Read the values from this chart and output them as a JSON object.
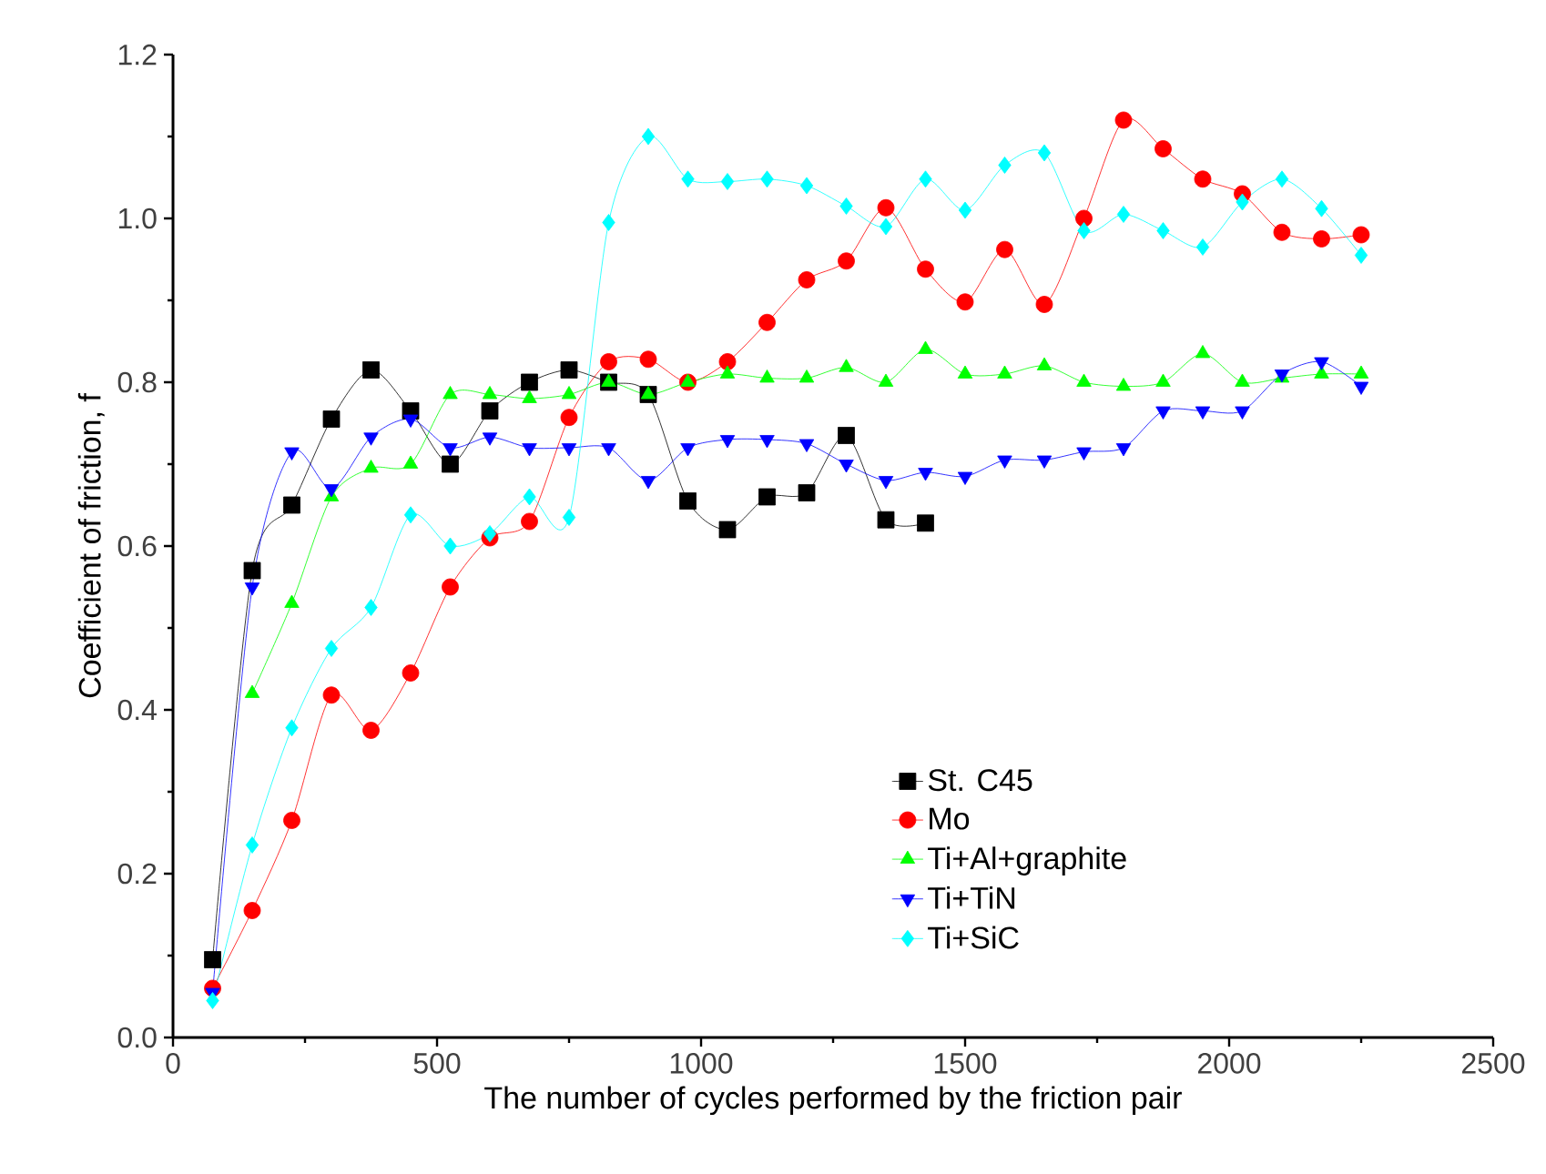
{
  "chart_data": {
    "type": "line",
    "xlabel": "The number of cycles performed by the friction pair",
    "ylabel": "Coefficient of friction, f",
    "xlim": [
      0,
      2500
    ],
    "xticks": [
      0,
      500,
      1000,
      1500,
      2000,
      2500
    ],
    "ylim": [
      0,
      1.2
    ],
    "yticks": [
      {
        "value": 0,
        "label": "0.0"
      },
      {
        "value": 0.2,
        "label": "0.2"
      },
      {
        "value": 0.4,
        "label": "0.4"
      },
      {
        "value": 0.6,
        "label": "0.6"
      },
      {
        "value": 0.8,
        "label": "0.8"
      },
      {
        "value": 1.0,
        "label": "1.0"
      },
      {
        "value": 1.2,
        "label": "1.2"
      }
    ],
    "grid": false,
    "legend": "right",
    "line_style": "solid",
    "series": [
      {
        "name": "St. C45",
        "color": "#000000",
        "marker": "square",
        "x": [
          75,
          150,
          225,
          300,
          375,
          450,
          525,
          600,
          675,
          750,
          825,
          900,
          975,
          1050,
          1125,
          1200,
          1275,
          1350,
          1425
        ],
        "values": [
          0.095,
          0.57,
          0.65,
          0.755,
          0.815,
          0.765,
          0.7,
          0.765,
          0.8,
          0.815,
          0.8,
          0.785,
          0.655,
          0.62,
          0.66,
          0.665,
          0.735,
          0.632,
          0.628
        ]
      },
      {
        "name": "Mo",
        "color": "#ff0000",
        "marker": "circle",
        "x": [
          75,
          150,
          225,
          300,
          375,
          450,
          525,
          600,
          675,
          750,
          825,
          900,
          975,
          1050,
          1125,
          1200,
          1275,
          1350,
          1425,
          1500,
          1575,
          1650,
          1725,
          1800,
          1875,
          1950,
          2025,
          2100,
          2175,
          2250
        ],
        "values": [
          0.06,
          0.155,
          0.265,
          0.418,
          0.375,
          0.445,
          0.55,
          0.61,
          0.63,
          0.757,
          0.825,
          0.828,
          0.8,
          0.825,
          0.873,
          0.925,
          0.948,
          1.013,
          0.938,
          0.898,
          0.962,
          0.895,
          1.0,
          1.12,
          1.085,
          1.048,
          1.03,
          0.983,
          0.975,
          0.98
        ]
      },
      {
        "name": "Ti+Al+graphite",
        "color": "#00ff00",
        "marker": "triangle",
        "x": [
          150,
          225,
          300,
          375,
          450,
          525,
          600,
          675,
          750,
          825,
          900,
          975,
          1050,
          1125,
          1200,
          1275,
          1350,
          1425,
          1500,
          1575,
          1650,
          1725,
          1800,
          1875,
          1950,
          2025,
          2100,
          2175,
          2250
        ],
        "values": [
          0.42,
          0.53,
          0.66,
          0.695,
          0.7,
          0.785,
          0.785,
          0.78,
          0.785,
          0.8,
          0.785,
          0.8,
          0.81,
          0.805,
          0.805,
          0.818,
          0.8,
          0.84,
          0.81,
          0.81,
          0.82,
          0.8,
          0.795,
          0.8,
          0.835,
          0.8,
          0.805,
          0.81,
          0.81
        ]
      },
      {
        "name": "Ti+TiN",
        "color": "#0000ff",
        "marker": "triangle down",
        "x": [
          75,
          150,
          225,
          300,
          375,
          450,
          525,
          600,
          675,
          750,
          825,
          900,
          975,
          1050,
          1125,
          1200,
          1275,
          1350,
          1425,
          1500,
          1575,
          1650,
          1725,
          1800,
          1875,
          1950,
          2025,
          2100,
          2175,
          2250
        ],
        "values": [
          0.055,
          0.55,
          0.715,
          0.67,
          0.733,
          0.755,
          0.72,
          0.733,
          0.72,
          0.72,
          0.72,
          0.68,
          0.72,
          0.73,
          0.73,
          0.725,
          0.7,
          0.68,
          0.69,
          0.685,
          0.705,
          0.705,
          0.715,
          0.72,
          0.765,
          0.765,
          0.765,
          0.81,
          0.825,
          0.795
        ]
      },
      {
        "name": "Ti+SiC",
        "color": "#00ffff",
        "marker": "diamond",
        "x": [
          75,
          150,
          225,
          300,
          375,
          450,
          525,
          600,
          675,
          750,
          825,
          900,
          975,
          1050,
          1125,
          1200,
          1275,
          1350,
          1425,
          1500,
          1575,
          1650,
          1725,
          1800,
          1875,
          1950,
          2025,
          2100,
          2175,
          2250
        ],
        "values": [
          0.045,
          0.235,
          0.378,
          0.475,
          0.525,
          0.638,
          0.6,
          0.615,
          0.66,
          0.635,
          0.995,
          1.1,
          1.048,
          1.045,
          1.048,
          1.04,
          1.015,
          0.99,
          1.048,
          1.01,
          1.065,
          1.08,
          0.985,
          1.005,
          0.985,
          0.965,
          1.02,
          1.048,
          1.012,
          0.955
        ]
      }
    ]
  }
}
